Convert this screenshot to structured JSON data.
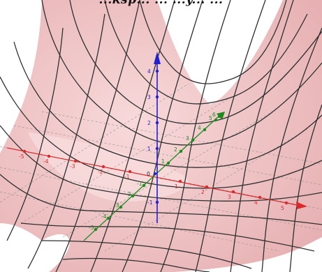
{
  "caption": "...ksp... ... ...y... ...",
  "axes": {
    "x": {
      "ticks": [
        "-5",
        "-4",
        "-3",
        "-2",
        "-1",
        "1",
        "2",
        "3",
        "4",
        "5"
      ],
      "color": "#d92b2b"
    },
    "y": {
      "ticks": [
        "-5",
        "-4",
        "-3",
        "-2",
        "-1",
        "1",
        "2",
        "3",
        "4",
        "5",
        "6"
      ],
      "color": "#1f8a1f"
    },
    "z": {
      "ticks": [
        "-1",
        "1",
        "2",
        "3",
        "4"
      ],
      "color": "#2222cc"
    },
    "origin_label": "0"
  },
  "colors": {
    "surface": "#eebfc0",
    "grid": "#2f2f2f",
    "x_axis": "#d92b2b",
    "y_axis": "#1f8a1f",
    "z_axis": "#2222cc"
  }
}
